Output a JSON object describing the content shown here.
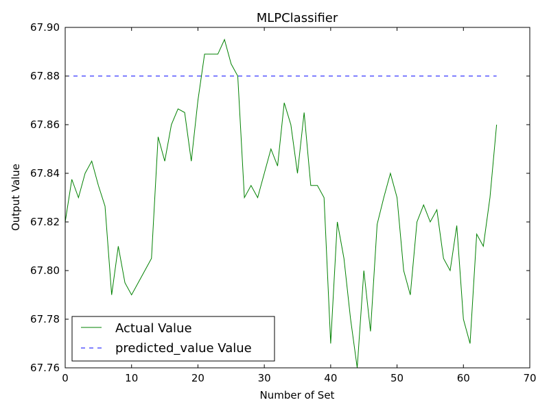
{
  "chart_data": {
    "type": "line",
    "title": "MLPClassifier",
    "xlabel": "Number of Set",
    "ylabel": "Output Value",
    "xlim": [
      0,
      70
    ],
    "ylim": [
      67.76,
      67.9
    ],
    "xticks": [
      "0",
      "10",
      "20",
      "30",
      "40",
      "50",
      "60",
      "70"
    ],
    "yticks": [
      "67.76",
      "67.78",
      "67.80",
      "67.82",
      "67.84",
      "67.86",
      "67.88",
      "67.90"
    ],
    "grid": false,
    "legend_position": "lower-left",
    "series": [
      {
        "name": "Actual Value",
        "color": "#008000",
        "style": "solid",
        "x": [
          0,
          1,
          2,
          3,
          4,
          5,
          6,
          7,
          8,
          9,
          10,
          11,
          12,
          13,
          14,
          15,
          16,
          17,
          18,
          19,
          20,
          21,
          22,
          23,
          24,
          25,
          26,
          27,
          28,
          29,
          30,
          31,
          32,
          33,
          34,
          35,
          36,
          37,
          38,
          39,
          40,
          41,
          42,
          43,
          44,
          45,
          46,
          47,
          48,
          49,
          50,
          51,
          52,
          53,
          54,
          55,
          56,
          57,
          58,
          59,
          60,
          61,
          62,
          63,
          64,
          65
        ],
        "values": [
          67.82,
          67.8375,
          67.83,
          67.84,
          67.845,
          67.835,
          67.8265,
          67.79,
          67.81,
          67.795,
          67.79,
          67.795,
          67.8,
          67.805,
          67.855,
          67.845,
          67.86,
          67.8665,
          67.865,
          67.845,
          67.87,
          67.889,
          67.889,
          67.889,
          67.895,
          67.885,
          67.88,
          67.83,
          67.835,
          67.83,
          67.84,
          67.85,
          67.843,
          67.869,
          67.86,
          67.84,
          67.865,
          67.835,
          67.835,
          67.83,
          67.77,
          67.82,
          67.805,
          67.78,
          67.76,
          67.8,
          67.775,
          67.819,
          67.83,
          67.84,
          67.83,
          67.8,
          67.79,
          67.82,
          67.827,
          67.82,
          67.825,
          67.805,
          67.8,
          67.8185,
          67.78,
          67.77,
          67.815,
          67.81,
          67.83,
          67.86
        ]
      },
      {
        "name": "predicted_value Value",
        "color": "#0000ff",
        "style": "dashed",
        "x": [
          0,
          1,
          2,
          3,
          4,
          5,
          6,
          7,
          8,
          9,
          10,
          11,
          12,
          13,
          14,
          15,
          16,
          17,
          18,
          19,
          20,
          21,
          22,
          23,
          24,
          25,
          26,
          27,
          28,
          29,
          30,
          31,
          32,
          33,
          34,
          35,
          36,
          37,
          38,
          39,
          40,
          41,
          42,
          43,
          44,
          45,
          46,
          47,
          48,
          49,
          50,
          51,
          52,
          53,
          54,
          55,
          56,
          57,
          58,
          59,
          60,
          61,
          62,
          63,
          64,
          65
        ],
        "values": [
          67.88,
          67.88,
          67.88,
          67.88,
          67.88,
          67.88,
          67.88,
          67.88,
          67.88,
          67.88,
          67.88,
          67.88,
          67.88,
          67.88,
          67.88,
          67.88,
          67.88,
          67.88,
          67.88,
          67.88,
          67.88,
          67.88,
          67.88,
          67.88,
          67.88,
          67.88,
          67.88,
          67.88,
          67.88,
          67.88,
          67.88,
          67.88,
          67.88,
          67.88,
          67.88,
          67.88,
          67.88,
          67.88,
          67.88,
          67.88,
          67.88,
          67.88,
          67.88,
          67.88,
          67.88,
          67.88,
          67.88,
          67.88,
          67.88,
          67.88,
          67.88,
          67.88,
          67.88,
          67.88,
          67.88,
          67.88,
          67.88,
          67.88,
          67.88,
          67.88,
          67.88,
          67.88,
          67.88,
          67.88,
          67.88,
          67.88
        ]
      }
    ]
  }
}
